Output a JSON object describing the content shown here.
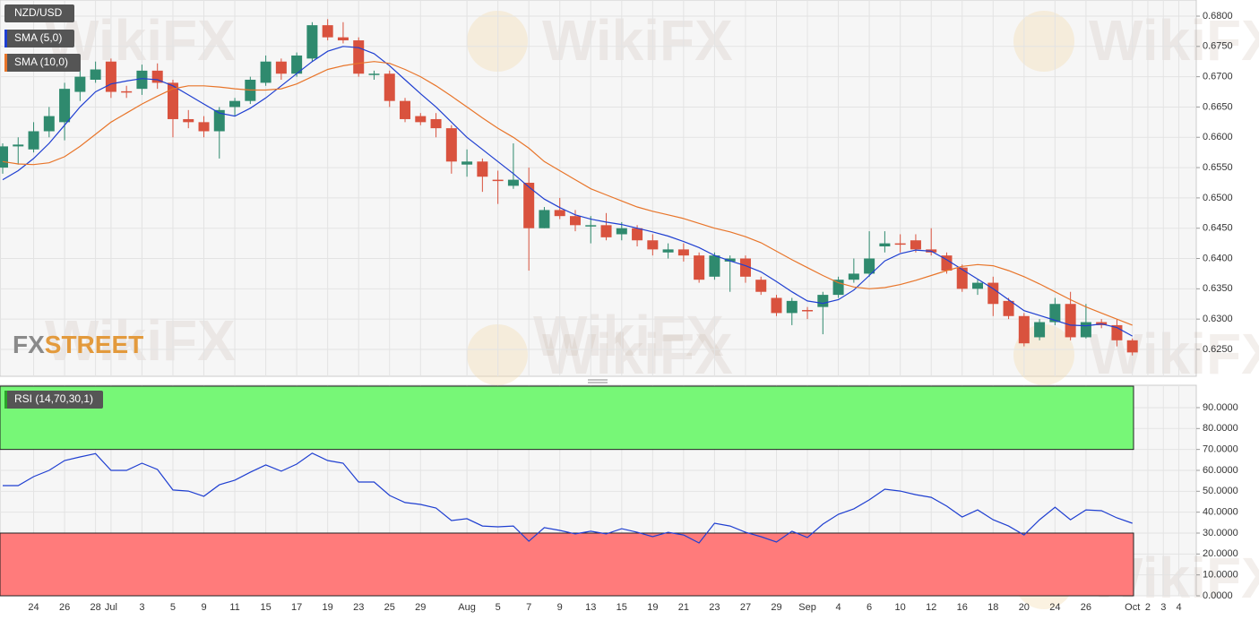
{
  "chart_data": [
    {
      "type": "candlestick",
      "title": "NZD/USD",
      "categories": [
        null,
        null,
        "24",
        null,
        "26",
        null,
        "28",
        "Jul",
        null,
        "3",
        null,
        "5",
        null,
        "9",
        null,
        "11",
        null,
        "15",
        null,
        "17",
        null,
        "19",
        null,
        "23",
        null,
        "25",
        null,
        "29",
        null,
        null,
        "Aug",
        null,
        "5",
        null,
        "7",
        null,
        "9",
        null,
        "13",
        null,
        "15",
        null,
        "19",
        null,
        "21",
        null,
        "23",
        null,
        "27",
        null,
        "29",
        null,
        "Sep",
        null,
        "4",
        null,
        "6",
        null,
        "10",
        null,
        "12",
        null,
        "16",
        null,
        "18",
        null,
        "20",
        null,
        "24",
        null,
        "26",
        null,
        null,
        "Oct",
        "2",
        "3",
        "4"
      ],
      "open": [
        0.655,
        0.6585,
        0.658,
        0.661,
        0.6625,
        0.6675,
        0.6695,
        0.6725,
        0.6676,
        0.668,
        0.671,
        0.669,
        0.663,
        0.6625,
        0.661,
        0.665,
        0.666,
        0.669,
        0.6725,
        0.6705,
        0.673,
        0.6785,
        0.6765,
        0.676,
        0.6705,
        0.6705,
        0.666,
        0.6635,
        0.663,
        0.6615,
        0.6555,
        0.656,
        0.653,
        0.652,
        0.6525,
        0.645,
        0.648,
        0.647,
        0.6455,
        0.6455,
        0.644,
        0.645,
        0.643,
        0.641,
        0.6415,
        0.6405,
        0.637,
        0.6395,
        0.64,
        0.6365,
        0.6335,
        0.631,
        0.6315,
        0.632,
        0.634,
        0.6365,
        0.6375,
        0.642,
        0.6425,
        0.643,
        0.6415,
        0.6405,
        0.6385,
        0.635,
        0.636,
        0.633,
        0.6305,
        0.627,
        0.6295,
        0.6325,
        0.627,
        0.6295,
        0.629,
        0.6265,
        null,
        null,
        null
      ],
      "high": [
        0.659,
        0.66,
        0.6625,
        0.665,
        0.669,
        0.671,
        0.6725,
        0.673,
        0.6685,
        0.672,
        0.6722,
        0.6695,
        0.6645,
        0.6635,
        0.665,
        0.6665,
        0.67,
        0.6735,
        0.673,
        0.674,
        0.679,
        0.6795,
        0.679,
        0.6765,
        0.671,
        0.671,
        0.6665,
        0.664,
        0.664,
        0.662,
        0.658,
        0.6565,
        0.6545,
        0.659,
        0.655,
        0.6485,
        0.65,
        0.648,
        0.647,
        0.6475,
        0.646,
        0.6455,
        0.644,
        0.6425,
        0.6425,
        0.641,
        0.641,
        0.6405,
        0.6405,
        0.637,
        0.634,
        0.6335,
        0.632,
        0.6345,
        0.637,
        0.64,
        0.6445,
        0.6445,
        0.644,
        0.644,
        0.645,
        0.641,
        0.639,
        0.6365,
        0.637,
        0.6335,
        0.631,
        0.63,
        0.6335,
        0.6345,
        0.6325,
        0.63,
        0.63,
        0.6268,
        null,
        null,
        null
      ],
      "low": [
        0.654,
        0.6555,
        0.6575,
        0.66,
        0.6595,
        0.666,
        0.669,
        0.6665,
        0.6665,
        0.667,
        0.668,
        0.66,
        0.6615,
        0.66,
        0.6565,
        0.6635,
        0.6655,
        0.6685,
        0.6695,
        0.67,
        0.6725,
        0.676,
        0.6755,
        0.67,
        0.6695,
        0.665,
        0.6625,
        0.662,
        0.66,
        0.654,
        0.6535,
        0.651,
        0.649,
        0.6515,
        0.638,
        0.645,
        0.6465,
        0.6445,
        0.6425,
        0.643,
        0.643,
        0.642,
        0.6405,
        0.64,
        0.6395,
        0.636,
        0.6365,
        0.6345,
        0.636,
        0.634,
        0.6305,
        0.629,
        0.63,
        0.6275,
        0.6335,
        0.636,
        0.637,
        0.641,
        0.641,
        0.641,
        0.6405,
        0.6375,
        0.6345,
        0.634,
        0.6305,
        0.63,
        0.6255,
        0.6265,
        0.629,
        0.6265,
        0.6268,
        0.6285,
        0.6255,
        0.624,
        null,
        null,
        null
      ],
      "close": [
        0.6585,
        0.6588,
        0.661,
        0.6635,
        0.668,
        0.67,
        0.6712,
        0.6675,
        0.6675,
        0.671,
        0.669,
        0.663,
        0.6625,
        0.661,
        0.6645,
        0.666,
        0.6695,
        0.6725,
        0.6705,
        0.6735,
        0.6785,
        0.6765,
        0.676,
        0.6705,
        0.6705,
        0.666,
        0.663,
        0.6625,
        0.6615,
        0.656,
        0.656,
        0.6535,
        0.6528,
        0.653,
        0.645,
        0.648,
        0.647,
        0.6455,
        0.6455,
        0.6435,
        0.645,
        0.643,
        0.6415,
        0.6415,
        0.6405,
        0.6365,
        0.6405,
        0.64,
        0.637,
        0.6345,
        0.631,
        0.633,
        0.6313,
        0.634,
        0.6365,
        0.6375,
        0.64,
        0.6425,
        0.6423,
        0.6415,
        0.641,
        0.638,
        0.635,
        0.636,
        0.6325,
        0.6305,
        0.626,
        0.6295,
        0.6325,
        0.627,
        0.6295,
        0.629,
        0.6265,
        0.6245,
        null,
        null,
        null
      ],
      "up_color": "#2f8a6e",
      "down_color": "#d9523e",
      "series": [
        {
          "name": "SMA (5,0)",
          "color": "#1f3fd1",
          "values": [
            0.653,
            0.6545,
            0.6565,
            0.659,
            0.662,
            0.665,
            0.6675,
            0.6688,
            0.6693,
            0.6697,
            0.6695,
            0.6685,
            0.667,
            0.6655,
            0.664,
            0.6635,
            0.6648,
            0.6665,
            0.6685,
            0.6705,
            0.6725,
            0.6742,
            0.675,
            0.6748,
            0.6738,
            0.6718,
            0.6695,
            0.6672,
            0.665,
            0.6625,
            0.66,
            0.658,
            0.656,
            0.654,
            0.6518,
            0.6498,
            0.6484,
            0.6472,
            0.6465,
            0.646,
            0.6456,
            0.645,
            0.6444,
            0.6437,
            0.6428,
            0.6418,
            0.6405,
            0.6396,
            0.6388,
            0.6378,
            0.6362,
            0.6345,
            0.633,
            0.6326,
            0.6332,
            0.6348,
            0.6372,
            0.6396,
            0.6408,
            0.6414,
            0.6412,
            0.6398,
            0.6382,
            0.6366,
            0.635,
            0.6332,
            0.6314,
            0.6306,
            0.6298,
            0.629,
            0.6289,
            0.6292,
            0.6286,
            0.6272,
            null,
            null,
            null
          ]
        },
        {
          "name": "SMA (10,0)",
          "color": "#e8752a",
          "values": [
            0.656,
            0.6556,
            0.6555,
            0.6558,
            0.6568,
            0.6585,
            0.6605,
            0.6625,
            0.664,
            0.6655,
            0.6668,
            0.668,
            0.6685,
            0.6685,
            0.6683,
            0.668,
            0.6678,
            0.6678,
            0.668,
            0.6688,
            0.67,
            0.6712,
            0.6718,
            0.6722,
            0.6725,
            0.6722,
            0.6712,
            0.67,
            0.6685,
            0.6668,
            0.665,
            0.6632,
            0.6615,
            0.66,
            0.6582,
            0.656,
            0.6545,
            0.653,
            0.6515,
            0.6505,
            0.6495,
            0.6485,
            0.6478,
            0.6472,
            0.6466,
            0.6458,
            0.645,
            0.6444,
            0.6436,
            0.6426,
            0.6412,
            0.6398,
            0.6385,
            0.6372,
            0.636,
            0.6353,
            0.635,
            0.6352,
            0.6357,
            0.6364,
            0.6372,
            0.638,
            0.6387,
            0.639,
            0.6388,
            0.638,
            0.637,
            0.6358,
            0.6345,
            0.6332,
            0.632,
            0.631,
            0.63,
            0.629,
            null,
            null,
            null
          ]
        }
      ],
      "ylim": [
        0.62056,
        0.68266
      ],
      "yticks": [
        {
          "value": 0.625,
          "label": "0.6250"
        },
        {
          "value": 0.63,
          "label": "0.6300"
        },
        {
          "value": 0.635,
          "label": "0.6350"
        },
        {
          "value": 0.64,
          "label": "0.6400"
        },
        {
          "value": 0.645,
          "label": "0.6450"
        },
        {
          "value": 0.65,
          "label": "0.6500"
        },
        {
          "value": 0.655,
          "label": "0.6550"
        },
        {
          "value": 0.66,
          "label": "0.6600"
        },
        {
          "value": 0.665,
          "label": "0.6650"
        },
        {
          "value": 0.67,
          "label": "0.6700"
        },
        {
          "value": 0.675,
          "label": "0.6750"
        },
        {
          "value": 0.68,
          "label": "0.6800"
        }
      ],
      "grid": true
    },
    {
      "type": "line",
      "series": [
        {
          "name": "RSI (14,70,30,1)",
          "color": "#1f3fd1",
          "values": [
            52.7,
            52.7,
            57,
            60,
            64.7,
            66.4,
            68,
            60,
            60,
            63.4,
            60.4,
            50.6,
            50.1,
            47.6,
            53.1,
            55.3,
            59.1,
            62.6,
            59.6,
            63,
            68.2,
            64.7,
            63.4,
            54.4,
            54.4,
            48,
            44.6,
            43.7,
            42,
            36,
            36.9,
            33.4,
            33,
            33.4,
            26.1,
            32.6,
            31.3,
            29.6,
            30.9,
            29.6,
            32.1,
            30.4,
            28.3,
            30.4,
            29.1,
            25.3,
            34.7,
            33.4,
            30.4,
            28.3,
            25.7,
            30.9,
            27.9,
            34.3,
            39,
            41.6,
            45.9,
            51,
            50.1,
            48.4,
            47.1,
            42.9,
            37.7,
            41.1,
            36.4,
            33.4,
            29.1,
            36.4,
            42.4,
            36.4,
            41.1,
            40.7,
            37.3,
            34.7,
            null,
            null,
            null
          ]
        }
      ],
      "overbought": 70,
      "oversold": 30,
      "overbought_color": "#77f777",
      "oversold_color": "#ff7b7b",
      "ylim": [
        0,
        100.7
      ],
      "yticks": [
        {
          "value": 0,
          "label": "0.0000"
        },
        {
          "value": 10,
          "label": "10.0000"
        },
        {
          "value": 20,
          "label": "20.0000"
        },
        {
          "value": 30,
          "label": "30.0000"
        },
        {
          "value": 40,
          "label": "40.0000"
        },
        {
          "value": 50,
          "label": "50.0000"
        },
        {
          "value": 60,
          "label": "60.0000"
        },
        {
          "value": 70,
          "label": "70.0000"
        },
        {
          "value": 80,
          "label": "80.0000"
        },
        {
          "value": 90,
          "label": "90.0000"
        }
      ],
      "grid": true
    }
  ],
  "watermark": "WikiFX",
  "logo": [
    "FX",
    "STREET"
  ]
}
